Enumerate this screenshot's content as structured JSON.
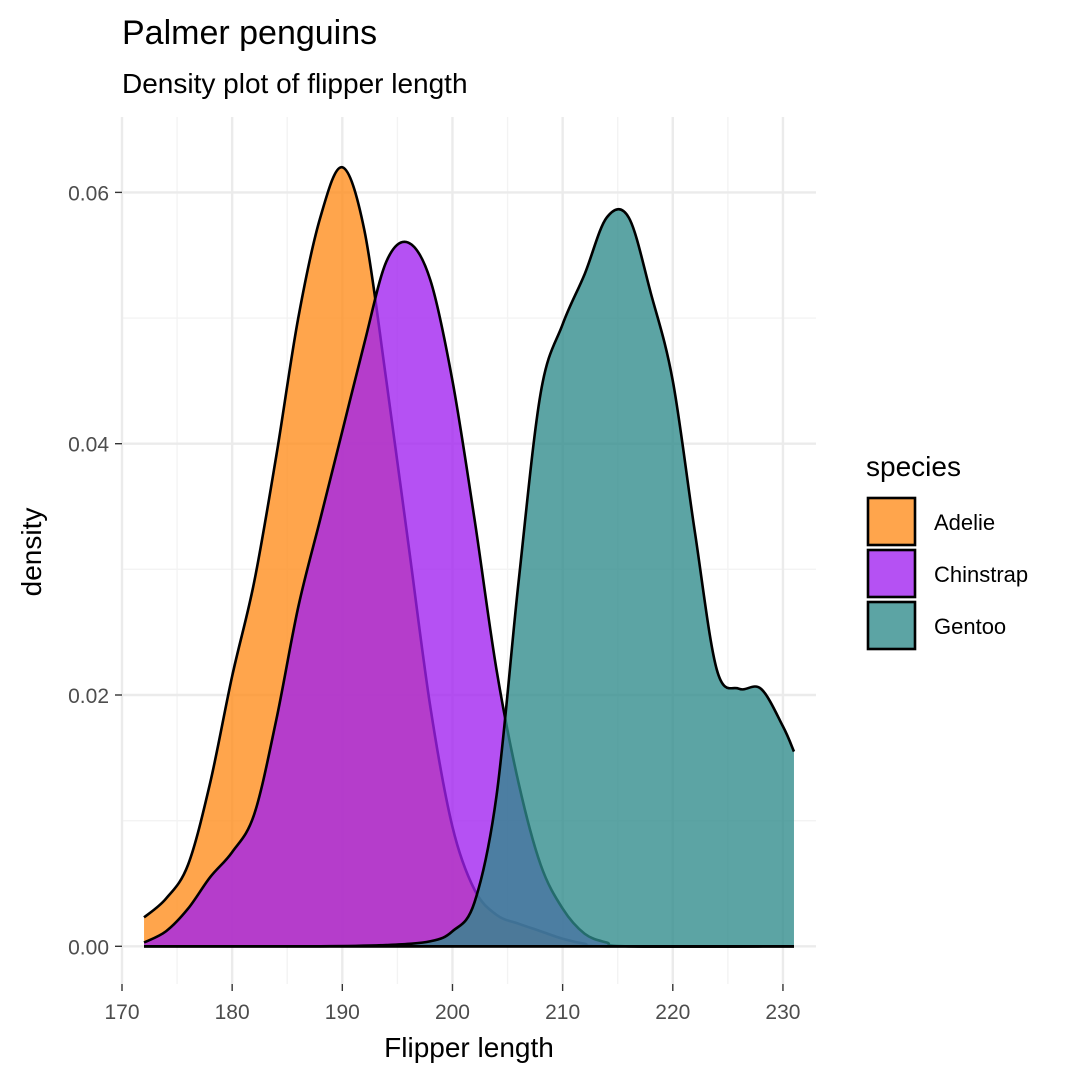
{
  "chart_data": {
    "type": "area",
    "title": "Palmer penguins",
    "subtitle": "Density plot of flipper length",
    "xlabel": "Flipper length",
    "ylabel": "density",
    "xlim": [
      170,
      233
    ],
    "ylim": [
      -0.003,
      0.066
    ],
    "x_ticks": [
      170,
      180,
      190,
      200,
      210,
      220,
      230
    ],
    "x_tick_labels": [
      "170",
      "180",
      "190",
      "200",
      "210",
      "220",
      "230"
    ],
    "y_ticks": [
      0,
      0.02,
      0.04,
      0.06
    ],
    "y_tick_labels": [
      "0.00",
      "0.02",
      "0.04",
      "0.06"
    ],
    "grid": true,
    "legend": {
      "title": "species",
      "position": "right"
    },
    "series": [
      {
        "name": "Adelie",
        "color": "#ff8c1a",
        "x": [
          172,
          174,
          176,
          178,
          180,
          182,
          184,
          186,
          188,
          190,
          192,
          194,
          196,
          198,
          200,
          202,
          204,
          206,
          208,
          210,
          212,
          214,
          231
        ],
        "y": [
          0.0023,
          0.0038,
          0.0065,
          0.013,
          0.0215,
          0.029,
          0.039,
          0.05,
          0.058,
          0.062,
          0.057,
          0.045,
          0.032,
          0.019,
          0.0095,
          0.0045,
          0.0025,
          0.0018,
          0.0012,
          0.0006,
          0.0002,
          0.0,
          0.0
        ]
      },
      {
        "name": "Chinstrap",
        "color": "#a020f0",
        "x": [
          172,
          174,
          176,
          178,
          180,
          182,
          184,
          186,
          188,
          190,
          192,
          194,
          196,
          198,
          200,
          202,
          204,
          206,
          208,
          210,
          212,
          214,
          216,
          231
        ],
        "y": [
          0.0003,
          0.0012,
          0.003,
          0.0055,
          0.0075,
          0.0105,
          0.018,
          0.027,
          0.034,
          0.041,
          0.048,
          0.0545,
          0.056,
          0.053,
          0.045,
          0.034,
          0.022,
          0.013,
          0.0065,
          0.003,
          0.001,
          0.0003,
          0.0,
          0.0
        ]
      },
      {
        "name": "Gentoo",
        "color": "#2e8b8b",
        "x": [
          172,
          188,
          194,
          198,
          200,
          202,
          204,
          206,
          208,
          210,
          212,
          214,
          216,
          218,
          220,
          222,
          224,
          226,
          228,
          230,
          231
        ],
        "y": [
          0.0,
          0.0,
          0.0001,
          0.0004,
          0.0012,
          0.0035,
          0.012,
          0.029,
          0.044,
          0.0495,
          0.0535,
          0.058,
          0.058,
          0.052,
          0.045,
          0.033,
          0.022,
          0.0205,
          0.0205,
          0.0175,
          0.0155
        ]
      }
    ]
  }
}
